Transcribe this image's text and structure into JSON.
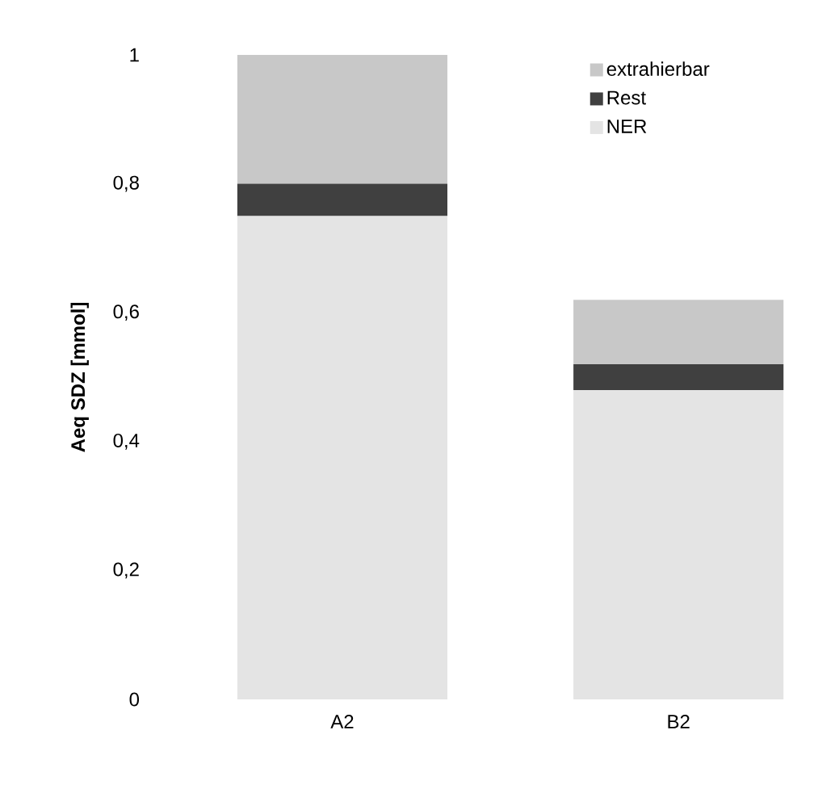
{
  "chart_data": {
    "type": "bar",
    "stacked": true,
    "ylabel": "Aeq SDZ [mmol]",
    "categories": [
      "A2",
      "B2"
    ],
    "series": [
      {
        "name": "NER",
        "color": "#e4e4e4",
        "values": [
          0.75,
          0.48
        ]
      },
      {
        "name": "Rest",
        "color": "#404040",
        "values": [
          0.05,
          0.04
        ]
      },
      {
        "name": "extrahierbar",
        "color": "#c8c8c8",
        "values": [
          0.2,
          0.1
        ]
      }
    ],
    "ylim": [
      0,
      1
    ],
    "yticks": [
      0,
      {
        "value": 0.2,
        "label": "0,2"
      },
      {
        "value": 0.4,
        "label": "0,4"
      },
      {
        "value": 0.6,
        "label": "0,6"
      },
      {
        "value": 0.8,
        "label": "0,8"
      },
      1
    ],
    "legend": "top right"
  }
}
